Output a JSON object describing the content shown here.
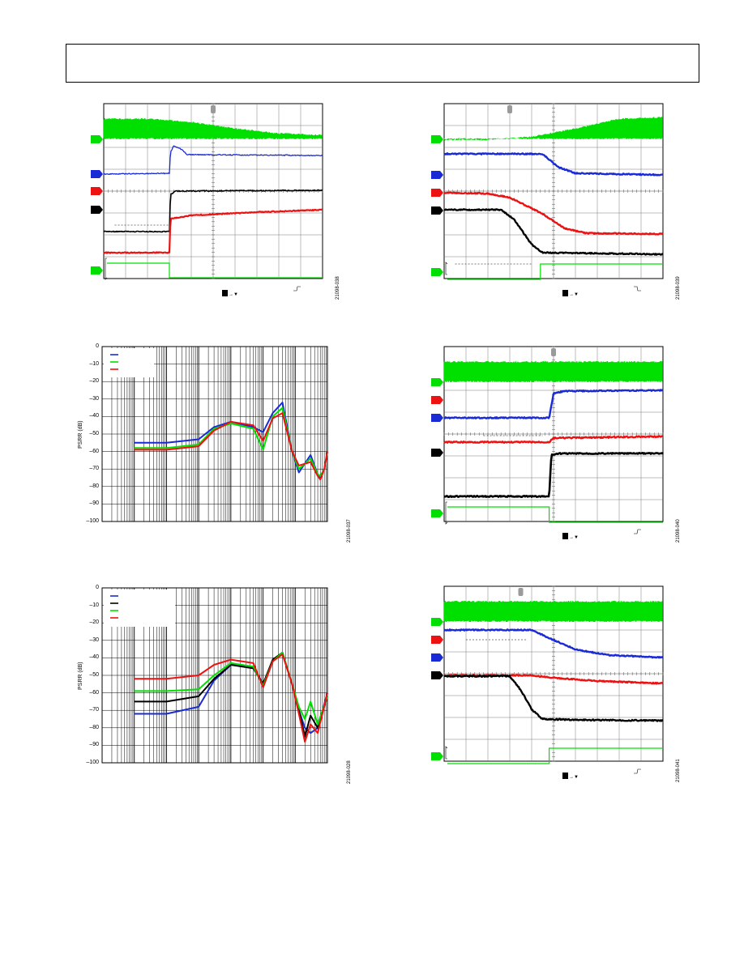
{
  "header": {
    "text": ""
  },
  "figures": [
    {
      "id": "fig-scope-1",
      "code": "21098-038",
      "kind": "scope",
      "edge": "rising"
    },
    {
      "id": "fig-scope-2",
      "code": "21098-039",
      "kind": "scope",
      "edge": "falling"
    },
    {
      "id": "fig-psrr-1",
      "code": "21098-037",
      "kind": "psrr"
    },
    {
      "id": "fig-scope-3",
      "code": "21098-040",
      "kind": "scope",
      "edge": "rising"
    },
    {
      "id": "fig-psrr-2",
      "code": "21098-028",
      "kind": "psrr"
    },
    {
      "id": "fig-scope-4",
      "code": "21098-041",
      "kind": "scope",
      "edge": "rising"
    }
  ],
  "colors": {
    "ch1": "#00e000",
    "ch2": "#1a2bd6",
    "ch3": "#ee1111",
    "ch4": "#000000",
    "grid": "#7a7a7a"
  },
  "chart_data": [
    {
      "type": "line",
      "ylabel": "PSRR (dB)",
      "yticks": [
        "0",
        "–10",
        "–20",
        "–30",
        "–40",
        "–50",
        "–60",
        "–70",
        "–80",
        "–90",
        "–100"
      ],
      "ylim": [
        -100,
        0
      ],
      "xscale": "log",
      "xlim": [
        1,
        10000000
      ],
      "grid": true,
      "legend": "top-left",
      "series": [
        {
          "color": "#1a2bd6",
          "x": [
            10,
            100,
            1000,
            3000,
            10000,
            50000,
            100000,
            200000,
            400000,
            800000,
            1300000,
            3000000,
            5000000,
            6000000,
            8000000,
            10000000
          ],
          "values": [
            -55,
            -55,
            -53,
            -46,
            -43,
            -46,
            -49,
            -38,
            -32,
            -60,
            -72,
            -62,
            -73,
            -75,
            -70,
            -60
          ]
        },
        {
          "color": "#00e000",
          "x": [
            10,
            100,
            1000,
            3000,
            10000,
            50000,
            100000,
            200000,
            400000,
            800000,
            1300000,
            3000000,
            5000000,
            6000000,
            8000000,
            10000000
          ],
          "values": [
            -58,
            -58,
            -56,
            -47,
            -44,
            -47,
            -59,
            -40,
            -35,
            -60,
            -70,
            -64,
            -73,
            -74,
            -70,
            -60
          ]
        },
        {
          "color": "#ee1111",
          "x": [
            10,
            100,
            1000,
            3000,
            10000,
            50000,
            100000,
            200000,
            400000,
            800000,
            1300000,
            3000000,
            5000000,
            6000000,
            8000000,
            10000000
          ],
          "values": [
            -59,
            -59,
            -57,
            -48,
            -43,
            -45,
            -54,
            -41,
            -38,
            -60,
            -68,
            -66,
            -74,
            -76,
            -70,
            -60
          ]
        }
      ]
    },
    {
      "type": "line",
      "ylabel": "PSRR (dB)",
      "yticks": [
        "0",
        "–10",
        "–20",
        "–30",
        "–40",
        "–50",
        "–60",
        "–70",
        "–80",
        "–90",
        "–100"
      ],
      "ylim": [
        -100,
        0
      ],
      "xscale": "log",
      "xlim": [
        1,
        10000000
      ],
      "grid": true,
      "legend": "top-left",
      "series": [
        {
          "color": "#1a2bd6",
          "x": [
            10,
            100,
            1000,
            3000,
            10000,
            50000,
            100000,
            200000,
            400000,
            800000,
            1300000,
            2000000,
            3000000,
            5000000,
            10000000
          ],
          "values": [
            -72,
            -72,
            -68,
            -53,
            -44,
            -45,
            -55,
            -42,
            -37,
            -55,
            -70,
            -80,
            -83,
            -80,
            -60
          ]
        },
        {
          "color": "#000000",
          "x": [
            10,
            100,
            1000,
            3000,
            10000,
            50000,
            100000,
            200000,
            400000,
            800000,
            1300000,
            2000000,
            3000000,
            5000000,
            10000000
          ],
          "values": [
            -65,
            -65,
            -62,
            -52,
            -44,
            -46,
            -55,
            -41,
            -37,
            -55,
            -70,
            -85,
            -73,
            -80,
            -62
          ]
        },
        {
          "color": "#00e000",
          "x": [
            10,
            100,
            1000,
            3000,
            10000,
            50000,
            100000,
            200000,
            400000,
            800000,
            1300000,
            2000000,
            3000000,
            5000000,
            10000000
          ],
          "values": [
            -59,
            -59,
            -58,
            -50,
            -43,
            -45,
            -56,
            -42,
            -37,
            -55,
            -68,
            -75,
            -65,
            -78,
            -62
          ]
        },
        {
          "color": "#ee1111",
          "x": [
            10,
            100,
            1000,
            3000,
            10000,
            50000,
            100000,
            200000,
            400000,
            800000,
            1300000,
            2000000,
            3000000,
            5000000,
            10000000
          ],
          "values": [
            -52,
            -52,
            -50,
            -44,
            -41,
            -43,
            -57,
            -42,
            -38,
            -55,
            -72,
            -88,
            -78,
            -83,
            -60
          ]
        }
      ]
    }
  ]
}
